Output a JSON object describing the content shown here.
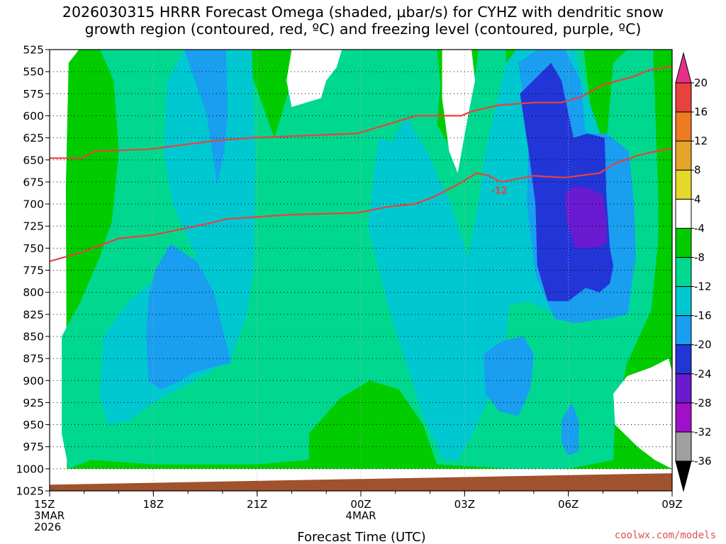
{
  "title_lines": [
    "2026030315 HRRR Forecast Omega (shaded, μbar/s) for CYHZ with dendritic snow",
    "growth region (contoured, red, ºC) and freezing level (contoured, purple, ºC)"
  ],
  "credit": "coolwx.com/models",
  "colors": {
    "gt20": "#e8308a",
    "16_20": "#e8423f",
    "12_16": "#ee7a22",
    "8_12": "#e6a52a",
    "4_8": "#e6d82a",
    "m4_4": "#ffffff",
    "m8_m4": "#00cc00",
    "m12_m8": "#00d890",
    "m16_m12": "#00c8d0",
    "m20_m16": "#1a9ef0",
    "m24_m20": "#2236d8",
    "m28_m24": "#6a1ad0",
    "m32_m28": "#a010c8",
    "m36_m32": "#a0a0a0",
    "lt_m36": "#000000",
    "terrain": "#a0522d",
    "dgz_contour": "#e8423f"
  },
  "chart_data": {
    "type": "heatmap",
    "title": "2026030315 HRRR Forecast Omega (shaded, μbar/s) for CYHZ with dendritic snow growth region (contoured, red, ºC) and freezing level (contoured, purple, ºC)",
    "xlabel": "Forecast Time (UTC)",
    "ylabel": "",
    "x_hours": [
      0,
      1,
      2,
      3,
      4,
      5,
      6,
      7,
      8,
      9,
      10,
      11,
      12,
      13,
      14,
      15,
      16,
      17,
      18
    ],
    "x_tick_labels": [
      {
        "hour": 0,
        "lines": [
          "15Z",
          "3MAR",
          "2026"
        ]
      },
      {
        "hour": 3,
        "lines": [
          "18Z"
        ]
      },
      {
        "hour": 6,
        "lines": [
          "21Z"
        ]
      },
      {
        "hour": 9,
        "lines": [
          "00Z",
          "4MAR"
        ]
      },
      {
        "hour": 12,
        "lines": [
          "03Z"
        ]
      },
      {
        "hour": 15,
        "lines": [
          "06Z"
        ]
      },
      {
        "hour": 18,
        "lines": [
          "09Z"
        ]
      }
    ],
    "y_levels_hpa": [
      525,
      550,
      575,
      600,
      625,
      650,
      675,
      700,
      725,
      750,
      775,
      800,
      825,
      850,
      875,
      900,
      925,
      950,
      975,
      1000,
      1025
    ],
    "ylim": [
      525,
      1025
    ],
    "colorbar_labels": [
      20,
      16,
      12,
      8,
      4,
      -4,
      -8,
      -12,
      -16,
      -20,
      -24,
      -28,
      -32,
      -36
    ],
    "colorbar_bins": [
      {
        "range": "> 20",
        "color_key": "gt20"
      },
      {
        "range": "16 to 20",
        "color_key": "16_20"
      },
      {
        "range": "12 to 16",
        "color_key": "12_16"
      },
      {
        "range": "8 to 12",
        "color_key": "8_12"
      },
      {
        "range": "4 to 8",
        "color_key": "4_8"
      },
      {
        "range": "-4 to 4",
        "color_key": "m4_4"
      },
      {
        "range": "-8 to -4",
        "color_key": "m8_m4"
      },
      {
        "range": "-12 to -8",
        "color_key": "m12_m8"
      },
      {
        "range": "-16 to -12",
        "color_key": "m16_m12"
      },
      {
        "range": "-20 to -16",
        "color_key": "m20_m16"
      },
      {
        "range": "-24 to -20",
        "color_key": "m24_m20"
      },
      {
        "range": "-28 to -24",
        "color_key": "m28_m24"
      },
      {
        "range": "-32 to -28",
        "color_key": "m32_m28"
      },
      {
        "range": "-36 to -32",
        "color_key": "m36_m32"
      },
      {
        "range": "< -36",
        "color_key": "lt_m36"
      }
    ],
    "omega_regions": [
      {
        "range": "-8 to -4",
        "color_key": "m8_m4",
        "points": [
          [
            0.47,
            680
          ],
          [
            0.55,
            540
          ],
          [
            0.85,
            525
          ],
          [
            18,
            525
          ],
          [
            18,
            1000
          ],
          [
            0.5,
            1000
          ]
        ]
      },
      {
        "range": "-12 to -8",
        "color_key": "m12_m8",
        "points": [
          [
            1.4,
            520
          ],
          [
            5.6,
            525
          ],
          [
            5.9,
            560
          ],
          [
            6.5,
            625
          ],
          [
            6.85,
            580
          ],
          [
            7.25,
            525
          ],
          [
            11.2,
            525
          ],
          [
            11.3,
            565
          ],
          [
            11.2,
            610
          ],
          [
            11.8,
            650
          ],
          [
            12.25,
            570
          ],
          [
            12.4,
            525
          ],
          [
            13.2,
            525
          ],
          [
            13.2,
            540
          ],
          [
            14.3,
            525
          ],
          [
            15.45,
            525
          ],
          [
            15.95,
            700
          ],
          [
            16.3,
            540
          ],
          [
            16.7,
            525
          ],
          [
            17.45,
            525
          ],
          [
            17.6,
            690
          ],
          [
            17.6,
            740
          ],
          [
            17.4,
            820
          ],
          [
            16.7,
            880
          ],
          [
            16.35,
            940
          ],
          [
            16.3,
            990
          ],
          [
            15,
            1000
          ],
          [
            13.5,
            1000
          ],
          [
            11.2,
            995
          ],
          [
            10.8,
            950
          ],
          [
            10.1,
            910
          ],
          [
            9.25,
            900
          ],
          [
            8.4,
            920
          ],
          [
            7.5,
            960
          ],
          [
            7.5,
            990
          ],
          [
            6,
            995
          ],
          [
            3,
            995
          ],
          [
            1.2,
            990
          ],
          [
            0.55,
            1000
          ],
          [
            0.35,
            960
          ],
          [
            0.35,
            850
          ],
          [
            0.9,
            810
          ],
          [
            1.45,
            760
          ],
          [
            1.8,
            720
          ],
          [
            2.0,
            640
          ],
          [
            1.85,
            560
          ]
        ]
      },
      {
        "range": "-16 to -12",
        "color_key": "m16_m12",
        "points": [
          [
            3.9,
            525
          ],
          [
            4.15,
            525
          ],
          [
            5.85,
            525
          ],
          [
            5.95,
            650
          ],
          [
            5.9,
            775
          ],
          [
            5.7,
            825
          ],
          [
            5.25,
            875
          ],
          [
            4.2,
            900
          ],
          [
            3,
            925
          ],
          [
            2.3,
            945
          ],
          [
            1.7,
            950
          ],
          [
            1.45,
            920
          ],
          [
            1.55,
            850
          ],
          [
            2.3,
            810
          ],
          [
            3.2,
            780
          ],
          [
            4.25,
            760
          ],
          [
            3.55,
            700
          ],
          [
            3.3,
            640
          ],
          [
            3.4,
            560
          ]
        ]
      },
      {
        "range": "-16 to -12",
        "color_key": "m16_m12",
        "points": [
          [
            9.2,
            725
          ],
          [
            9.5,
            625
          ],
          [
            9.9,
            630
          ],
          [
            10.3,
            600
          ],
          [
            10.9,
            640
          ],
          [
            11.6,
            700
          ],
          [
            12.1,
            760
          ],
          [
            12.4,
            700
          ],
          [
            12.6,
            640
          ],
          [
            12.9,
            590
          ],
          [
            13.2,
            540
          ],
          [
            13.5,
            525
          ],
          [
            15.2,
            525
          ],
          [
            15.4,
            560
          ],
          [
            16.0,
            630
          ],
          [
            16.5,
            665
          ],
          [
            16.85,
            740
          ],
          [
            16.8,
            820
          ],
          [
            16.35,
            830
          ],
          [
            15.7,
            830
          ],
          [
            15.05,
            830
          ],
          [
            14.6,
            825
          ],
          [
            13.85,
            810
          ],
          [
            13.3,
            815
          ],
          [
            13.2,
            850
          ],
          [
            12.9,
            880
          ],
          [
            12.7,
            920
          ],
          [
            12.3,
            955
          ],
          [
            11.8,
            990
          ],
          [
            11.4,
            990
          ],
          [
            10.8,
            940
          ],
          [
            10.3,
            880
          ],
          [
            9.75,
            810
          ]
        ]
      },
      {
        "range": "-20 to -16",
        "color_key": "m20_m16",
        "points": [
          [
            3.9,
            525
          ],
          [
            5.1,
            525
          ],
          [
            5.15,
            600
          ],
          [
            5.05,
            640
          ],
          [
            4.85,
            680
          ],
          [
            4.55,
            600
          ],
          [
            4.2,
            560
          ]
        ]
      },
      {
        "range": "-20 to -16",
        "color_key": "m20_m16",
        "points": [
          [
            3.05,
            775
          ],
          [
            3.5,
            745
          ],
          [
            4.25,
            765
          ],
          [
            4.75,
            800
          ],
          [
            5.05,
            850
          ],
          [
            5.25,
            880
          ],
          [
            4.2,
            890
          ],
          [
            3.8,
            900
          ],
          [
            3.2,
            910
          ],
          [
            2.85,
            900
          ],
          [
            2.8,
            850
          ],
          [
            2.85,
            810
          ]
        ]
      },
      {
        "range": "-20 to -16",
        "color_key": "m20_m16",
        "points": [
          [
            13.55,
            540
          ],
          [
            14.1,
            525
          ],
          [
            14.9,
            525
          ],
          [
            15.35,
            560
          ],
          [
            15.5,
            620
          ],
          [
            16.1,
            620
          ],
          [
            16.75,
            640
          ],
          [
            16.9,
            700
          ],
          [
            16.95,
            760
          ],
          [
            16.7,
            825
          ],
          [
            16.1,
            830
          ],
          [
            15.2,
            835
          ],
          [
            14.6,
            830
          ],
          [
            14.05,
            780
          ],
          [
            13.8,
            700
          ],
          [
            13.85,
            620
          ]
        ]
      },
      {
        "range": "-20 to -16",
        "color_key": "m20_m16",
        "points": [
          [
            12.55,
            870
          ],
          [
            13.1,
            855
          ],
          [
            13.7,
            850
          ],
          [
            14,
            870
          ],
          [
            13.9,
            910
          ],
          [
            13.55,
            940
          ],
          [
            13.0,
            935
          ],
          [
            12.6,
            915
          ]
        ]
      },
      {
        "range": "-20 to -16",
        "color_key": "m20_m16",
        "points": [
          [
            14.8,
            945
          ],
          [
            15.1,
            925
          ],
          [
            15.3,
            945
          ],
          [
            15.3,
            980
          ],
          [
            15.0,
            985
          ],
          [
            14.8,
            970
          ]
        ]
      },
      {
        "range": "-24 to -20",
        "color_key": "m24_m20",
        "points": [
          [
            13.6,
            575
          ],
          [
            14.5,
            540
          ],
          [
            14.8,
            560
          ],
          [
            15.15,
            625
          ],
          [
            15.55,
            620
          ],
          [
            16.05,
            625
          ],
          [
            16.1,
            690
          ],
          [
            16.2,
            750
          ],
          [
            16.3,
            770
          ],
          [
            16.2,
            790
          ],
          [
            15.9,
            800
          ],
          [
            15.5,
            795
          ],
          [
            15.0,
            810
          ],
          [
            14.4,
            810
          ],
          [
            14.1,
            770
          ],
          [
            14.05,
            700
          ],
          [
            13.85,
            640
          ]
        ]
      },
      {
        "range": "-28 to -24",
        "color_key": "m28_m24",
        "points": [
          [
            14.9,
            690
          ],
          [
            15.15,
            680
          ],
          [
            15.6,
            682
          ],
          [
            16.0,
            690
          ],
          [
            16.1,
            720
          ],
          [
            16.1,
            745
          ],
          [
            15.7,
            750
          ],
          [
            15.2,
            750
          ],
          [
            14.95,
            720
          ]
        ]
      },
      {
        "range": "-4 to 4",
        "color_key": "m4_4",
        "points": [
          [
            7.0,
            525
          ],
          [
            8.45,
            525
          ],
          [
            8.3,
            545
          ],
          [
            8.0,
            560
          ],
          [
            7.85,
            580
          ],
          [
            7.0,
            590
          ],
          [
            6.85,
            560
          ]
        ]
      },
      {
        "range": "-4 to 4",
        "color_key": "m4_4",
        "points": [
          [
            11.35,
            525
          ],
          [
            12.2,
            525
          ],
          [
            12.3,
            560
          ],
          [
            12.1,
            600
          ],
          [
            11.8,
            665
          ],
          [
            11.55,
            640
          ],
          [
            11.35,
            580
          ]
        ]
      },
      {
        "range": "-4 to 4",
        "color_key": "m4_4",
        "points": [
          [
            16.3,
            915
          ],
          [
            16.7,
            895
          ],
          [
            17.4,
            885
          ],
          [
            17.9,
            875
          ],
          [
            18,
            890
          ],
          [
            18,
            1000
          ],
          [
            17.5,
            990
          ],
          [
            17.0,
            975
          ],
          [
            16.35,
            950
          ]
        ]
      }
    ],
    "dgz_contours": [
      {
        "label": "",
        "points": [
          [
            0,
            648
          ],
          [
            0.95,
            648
          ],
          [
            1.3,
            640
          ],
          [
            2.85,
            638
          ],
          [
            4.85,
            628
          ],
          [
            5.85,
            625
          ],
          [
            7.7,
            622
          ],
          [
            8.9,
            620
          ],
          [
            10.6,
            600
          ],
          [
            11.9,
            600
          ],
          [
            12.2,
            595
          ],
          [
            13.0,
            588
          ],
          [
            14.0,
            585
          ],
          [
            14.8,
            585
          ],
          [
            15.4,
            578
          ],
          [
            16.0,
            565
          ],
          [
            16.85,
            556
          ],
          [
            17.35,
            548
          ],
          [
            18,
            544
          ]
        ]
      },
      {
        "label": "-12",
        "label_at": [
          13.0,
          685
        ],
        "points": [
          [
            0,
            765
          ],
          [
            0.9,
            755
          ],
          [
            2.0,
            739
          ],
          [
            3.0,
            735
          ],
          [
            4.6,
            722
          ],
          [
            5.1,
            717
          ],
          [
            7.0,
            712
          ],
          [
            8.9,
            710
          ],
          [
            9.8,
            703
          ],
          [
            10.55,
            700
          ],
          [
            11.1,
            692
          ],
          [
            11.7,
            680
          ],
          [
            12.35,
            665
          ],
          [
            12.7,
            668
          ],
          [
            13.05,
            675
          ],
          [
            14.0,
            668
          ],
          [
            14.9,
            670
          ],
          [
            15.9,
            665
          ],
          [
            16.3,
            655
          ],
          [
            17.0,
            645
          ],
          [
            17.45,
            641
          ],
          [
            18,
            637
          ]
        ]
      }
    ],
    "terrain_surface": [
      [
        0,
        1018
      ],
      [
        18,
        1005
      ]
    ]
  }
}
